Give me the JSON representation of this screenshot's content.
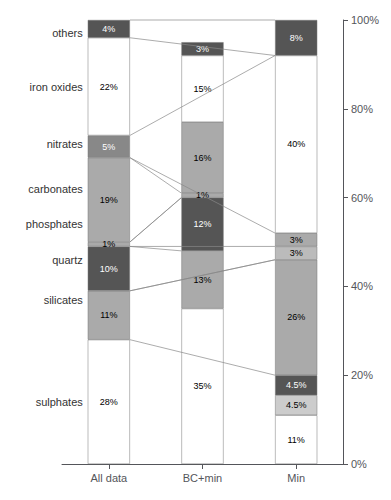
{
  "chart_data": {
    "type": "bar",
    "stacked": true,
    "data_labels": true,
    "grid": false,
    "categories": [
      "All data",
      "BC+min",
      "Min"
    ],
    "series": [
      {
        "values": [
          28,
          35,
          11
        ],
        "colors": [
          "#ffffff",
          "#ffffff",
          "#ffffff"
        ],
        "value_labels": [
          "28%",
          "35%",
          "11%"
        ]
      },
      {
        "values": [
          0,
          0,
          4.5
        ],
        "colors": [
          "#ffffff",
          "#ffffff",
          "#cccccc"
        ],
        "value_labels": [
          null,
          null,
          "4.5%"
        ]
      },
      {
        "values": [
          0,
          0,
          4.5
        ],
        "colors": [
          "#ffffff",
          "#ffffff",
          "#555555"
        ],
        "value_labels": [
          null,
          null,
          "4.5%"
        ]
      },
      {
        "values": [
          11,
          13,
          26
        ],
        "colors": [
          "#aaaaaa",
          "#aaaaaa",
          "#aaaaaa"
        ],
        "value_labels": [
          "11%",
          "13%",
          "26%"
        ]
      },
      {
        "values": [
          10,
          0,
          3
        ],
        "colors": [
          "#555555",
          "#ffffff",
          "#bbbbbb"
        ],
        "value_labels": [
          "10%",
          null,
          "3%"
        ]
      },
      {
        "values": [
          1,
          12,
          3
        ],
        "colors": [
          "#aaaaaa",
          "#555555",
          "#aaaaaa"
        ],
        "value_labels": [
          "1%",
          "12%",
          "3%"
        ]
      },
      {
        "values": [
          19,
          1,
          0
        ],
        "colors": [
          "#aaaaaa",
          "#aaaaaa",
          "#ffffff"
        ],
        "value_labels": [
          "19%",
          "1%",
          null
        ]
      },
      {
        "values": [
          5,
          16,
          40
        ],
        "colors": [
          "#888888",
          "#aaaaaa",
          "#ffffff"
        ],
        "value_labels": [
          "5%",
          "16%",
          "40%"
        ]
      },
      {
        "values": [
          22,
          15,
          0
        ],
        "colors": [
          "#ffffff",
          "#ffffff",
          "#ffffff"
        ],
        "value_labels": [
          "22%",
          "15%",
          null
        ]
      },
      {
        "values": [
          4,
          3,
          8
        ],
        "colors": [
          "#555555",
          "#555555",
          "#555555"
        ],
        "value_labels": [
          "4%",
          "3%",
          "8%"
        ]
      }
    ],
    "annotations": [
      {
        "text": "others",
        "y": 97
      },
      {
        "text": "iron oxides",
        "y": 85
      },
      {
        "text": "nitrates",
        "y": 72
      },
      {
        "text": "carbonates",
        "y": 62
      },
      {
        "text": "phosphates",
        "y": 54
      },
      {
        "text": "quartz",
        "y": 46
      },
      {
        "text": "silicates",
        "y": 37
      },
      {
        "text": "sulphates",
        "y": 14
      }
    ],
    "connectors": [
      {
        "series": 3,
        "from": 0,
        "to": 2
      },
      {
        "series": 4,
        "from": 0,
        "to": 2
      },
      {
        "series": 5,
        "from": 0,
        "to": 1
      },
      {
        "series": 6,
        "from": 0,
        "to": 1
      },
      {
        "series": 7,
        "from": 0,
        "to": 2
      },
      {
        "series": 9,
        "from": 0,
        "to": 2
      }
    ],
    "ylim": [
      0,
      100
    ],
    "yticks": [
      {
        "value": 0,
        "label": "0%"
      },
      {
        "value": 20,
        "label": "20%"
      },
      {
        "value": 40,
        "label": "40%"
      },
      {
        "value": 60,
        "label": "60%"
      },
      {
        "value": 80,
        "label": "80%"
      },
      {
        "value": 100,
        "label": "100%"
      }
    ]
  }
}
